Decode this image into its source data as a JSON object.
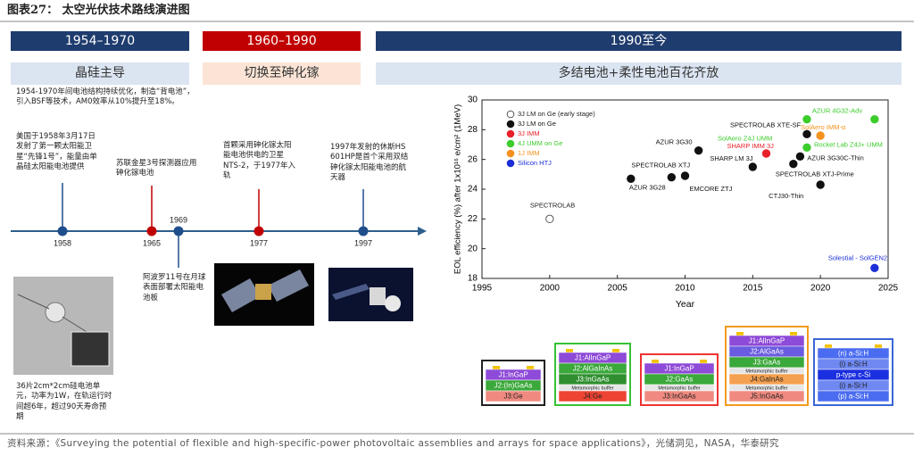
{
  "header": {
    "title": "图表27：  太空光伏技术路线演进图"
  },
  "phases": [
    {
      "period": "1954–1970",
      "theme": "晶硅主导"
    },
    {
      "period": "1960–1990",
      "theme": "切换至砷化镓"
    },
    {
      "period": "1990至今",
      "theme": "多结电池+柔性电池百花齐放"
    }
  ],
  "notes": [
    "1954-1970年间电池结构持续优化，制造“背电池”，引入BSF等技术，AM0效率从10%提升至18%。",
    "36片2cm*2cm硅电池单元，功率为1W，在轨运行时间超6年，超过90天寿命预期"
  ],
  "timeline": {
    "events": [
      {
        "year": "1958",
        "text": "美国于1958年3月17日发射了第一颗太阳能卫星“先锋1号”，能量由单晶硅太阳能电池提供"
      },
      {
        "year": "1965",
        "text": "苏联金星3号探测器应用砷化镓电池"
      },
      {
        "year": "1969",
        "text": "阿波罗11号在月球表面部署太阳能电池板"
      },
      {
        "year": "1977",
        "text": "首颗采用砷化镓太阳能电池供电的卫星NTS-2，于1977年入轨"
      },
      {
        "year": "1997",
        "text": "1997年发射的休斯HS 601HP是首个采用双结砷化镓太阳能电池的航天器"
      }
    ]
  },
  "chart_data": {
    "type": "scatter",
    "x_label": "Year",
    "y_label": "EOL efficiency (%) after 1x10¹⁶ e/cm² (1MeV)",
    "xlim": [
      1995,
      2025
    ],
    "xticks": [
      1995,
      2000,
      2005,
      2010,
      2015,
      2020,
      2025
    ],
    "ylim": [
      18,
      30
    ],
    "yticks": [
      18,
      20,
      22,
      24,
      26,
      28,
      30
    ],
    "legend": "upper-left",
    "series": [
      {
        "name": "3J LM on Ge (early stage)",
        "color": "#555555",
        "filled": false,
        "x": [
          2000
        ],
        "values": [
          22.0
        ],
        "point_labels": [
          "SPECTROLAB"
        ]
      },
      {
        "name": "3J LM on Ge",
        "color": "#111111",
        "x": [
          2006,
          2009,
          2010,
          2011,
          2015,
          2018,
          2018.5,
          2020,
          2019
        ],
        "values": [
          24.7,
          24.8,
          24.9,
          26.6,
          25.5,
          25.7,
          26.2,
          24.3,
          27.7
        ],
        "point_labels": [
          "AZUR 3G28",
          "SPECTROLAB XTJ",
          "EMCORE ZTJ",
          "AZUR 3G30",
          "SHARP LM 3J",
          "SPECTROLAB XTJ-Prime",
          "AZUR 3G30C-Thin",
          "CTJ30-Thin",
          "SPECTROLAB XTE-SF"
        ]
      },
      {
        "name": "3J IMM",
        "color": "#e8202a",
        "x": [
          2016
        ],
        "values": [
          26.4
        ],
        "point_labels": [
          "SHARP IMM 3J"
        ]
      },
      {
        "name": "4J UMM on Ge",
        "color": "#3ccc2c",
        "x": [
          2024,
          2019,
          2019
        ],
        "values": [
          28.7,
          28.7,
          26.8
        ],
        "point_labels": [
          "AZUR 4G32-Adv",
          "SolAero Z4J UMM",
          "Rocket Lab Z4J+ UMM"
        ]
      },
      {
        "name": "1J IMM",
        "color": "#f5921e",
        "x": [
          2020
        ],
        "values": [
          27.6
        ],
        "point_labels": [
          "SolAero IMM-α"
        ]
      },
      {
        "name": "Silicon HTJ",
        "color": "#1c2fd8",
        "x": [
          2024
        ],
        "values": [
          18.7
        ],
        "point_labels": [
          "Solestial - SolGEN2"
        ]
      }
    ]
  },
  "cells": [
    {
      "layers": [
        {
          "label": "J1:InGaP",
          "color": "#8e4ad8"
        },
        {
          "label": "J2:(In)GaAs",
          "color": "#3aa83a"
        },
        {
          "label": "J3:Ge",
          "color": "#f08a80"
        }
      ]
    },
    {
      "layers": [
        {
          "label": "J1:AlInGaP",
          "color": "#8e4ad8"
        },
        {
          "label": "J2:AlGaInAs",
          "color": "#3aa83a"
        },
        {
          "label": "J3:InGaAs",
          "color": "#2f8f2f"
        },
        {
          "label": "Metamorphic buffer",
          "color": "#e6e6e6"
        },
        {
          "label": "J4:Ge",
          "color": "#ee4433"
        }
      ]
    },
    {
      "layers": [
        {
          "label": "J1:InGaP",
          "color": "#8e4ad8"
        },
        {
          "label": "J2:GaAs",
          "color": "#3aa83a"
        },
        {
          "label": "Metamorphic buffer",
          "color": "#e6e6e6"
        },
        {
          "label": "J3:InGaAs",
          "color": "#f08a80"
        }
      ]
    },
    {
      "layers": [
        {
          "label": "J1:AlInGaP",
          "color": "#8e4ad8"
        },
        {
          "label": "J2:AlGaAs",
          "color": "#6a5ce0"
        },
        {
          "label": "J3:GaAs",
          "color": "#3aa83a"
        },
        {
          "label": "Metamorphic buffer",
          "color": "#e6e6e6"
        },
        {
          "label": "J4:GaInAs",
          "color": "#f5a050"
        },
        {
          "label": "Metamorphic buffer",
          "color": "#e6e6e6"
        },
        {
          "label": "J5:InGaAs",
          "color": "#f08a80"
        }
      ]
    },
    {
      "layers": [
        {
          "label": "(n) a-Si:H",
          "color": "#4a6cf0"
        },
        {
          "label": "(i) a-Si:H",
          "color": "#6f88f2"
        },
        {
          "label": "p-type c-Si",
          "color": "#1a2fe0"
        },
        {
          "label": "(i) a-Si:H",
          "color": "#6f88f2"
        },
        {
          "label": "(p) a-Si:H",
          "color": "#4a6cf0"
        }
      ]
    }
  ],
  "source": "资料来源：《Surveying the potential of flexible and high-specific-power photovoltaic assemblies and arrays for space applications》，光储洞见，NASA，华泰研究"
}
